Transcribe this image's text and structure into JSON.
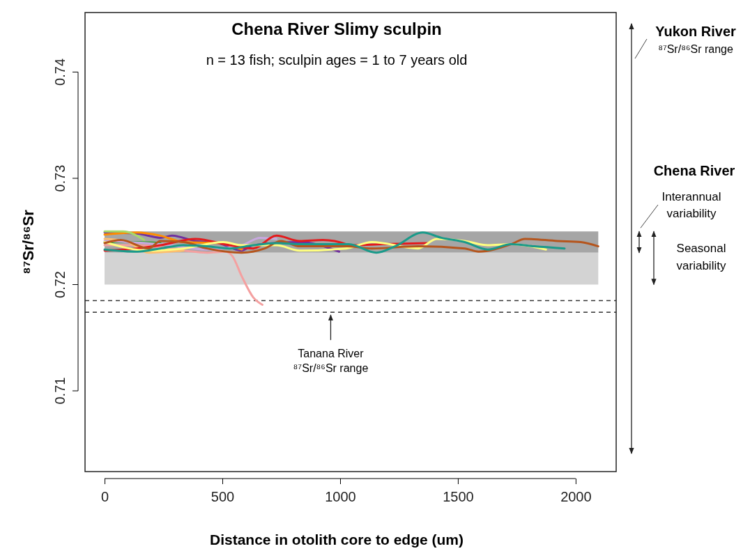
{
  "chart_data": {
    "type": "line",
    "title": "Chena River Slimy sculpin",
    "subtitle": "n = 13 fish; sculpin ages = 1 to 7 years old",
    "xlabel": "Distance in otolith core to edge (um)",
    "ylabel": "⁸⁷Sr/⁸⁶Sr",
    "xlim": [
      -83,
      2172
    ],
    "xticks": [
      0,
      500,
      1000,
      1500,
      2000
    ],
    "ylim": [
      0.7024,
      0.7456
    ],
    "yticks": [
      0.71,
      0.72,
      0.73,
      0.74
    ],
    "grid": false,
    "marker": "none",
    "line_style": "solid",
    "series": [
      {
        "color": "#f4a0a0",
        "x": [
          0,
          138,
          335,
          434,
          513,
          542,
          582,
          631,
          670
        ],
        "values": [
          0.7237,
          0.7237,
          0.7232,
          0.723,
          0.7231,
          0.7227,
          0.7208,
          0.7188,
          0.7181
        ]
      },
      {
        "color": "#7030a0",
        "x": [
          0,
          138,
          237,
          286,
          385,
          483,
          582,
          631,
          828,
          996
        ],
        "values": [
          0.7249,
          0.7248,
          0.7244,
          0.7246,
          0.7241,
          0.7239,
          0.7232,
          0.7237,
          0.724,
          0.7231
        ]
      },
      {
        "color": "#ff8c00",
        "x": [
          0,
          138,
          237,
          335,
          483,
          582
        ],
        "values": [
          0.7247,
          0.7249,
          0.7246,
          0.724,
          0.7239,
          0.7233
        ]
      },
      {
        "color": "#a6d96a",
        "x": [
          0,
          79,
          168
        ],
        "values": [
          0.725,
          0.725,
          0.7242
        ]
      },
      {
        "color": "#2ca02c",
        "x": [
          0,
          138,
          237
        ],
        "values": [
          0.724,
          0.724,
          0.7239
        ]
      },
      {
        "color": "#fdbf6f",
        "x": [
          0,
          89,
          187,
          335
        ],
        "values": [
          0.7243,
          0.7241,
          0.723,
          0.7232
        ]
      },
      {
        "color": "#c8a8e0",
        "x": [
          0,
          237,
          434,
          582,
          661,
          730
        ],
        "values": [
          0.7241,
          0.7238,
          0.7233,
          0.7237,
          0.7244,
          0.7243
        ]
      },
      {
        "color": "#e41a1c",
        "x": [
          0,
          138,
          237,
          385,
          532,
          631,
          730,
          828,
          927,
          1026,
          1036,
          1184,
          1371
        ],
        "values": [
          0.7232,
          0.7234,
          0.7237,
          0.7243,
          0.7237,
          0.7234,
          0.7246,
          0.7241,
          0.7242,
          0.7238,
          0.7237,
          0.7238,
          0.7239
        ]
      },
      {
        "color": "#ffff80",
        "x": [
          0,
          187,
          335,
          503,
          582,
          730,
          828,
          1026,
          1134,
          1331,
          1410,
          1529,
          1627,
          1726,
          1874
        ],
        "values": [
          0.724,
          0.7232,
          0.7234,
          0.724,
          0.7237,
          0.7237,
          0.7232,
          0.7234,
          0.724,
          0.7234,
          0.7243,
          0.7241,
          0.7237,
          0.7238,
          0.7233
        ]
      },
      {
        "color": "#b5551d",
        "x": [
          0,
          69,
          187,
          237,
          335,
          434,
          582,
          680,
          749,
          828,
          1026,
          1134,
          1331,
          1529,
          1588,
          1726,
          1785,
          1923,
          2022,
          2096
        ],
        "values": [
          0.7239,
          0.7242,
          0.7234,
          0.7241,
          0.724,
          0.7234,
          0.723,
          0.7234,
          0.7241,
          0.7236,
          0.7236,
          0.7234,
          0.7236,
          0.7234,
          0.7231,
          0.7238,
          0.7243,
          0.7241,
          0.724,
          0.7236
        ]
      },
      {
        "color": "#1a9a8a",
        "x": [
          0,
          138,
          237,
          335,
          434,
          532,
          631,
          730,
          828,
          927,
          1036,
          1154,
          1233,
          1351,
          1430,
          1529,
          1627,
          1726,
          1824,
          1953
        ],
        "values": [
          0.7233,
          0.7231,
          0.7234,
          0.7237,
          0.7236,
          0.7234,
          0.7237,
          0.7239,
          0.7238,
          0.7238,
          0.7238,
          0.723,
          0.7236,
          0.7249,
          0.7244,
          0.724,
          0.7233,
          0.7238,
          0.7236,
          0.7234
        ]
      }
    ],
    "bands": [
      {
        "axis": "y",
        "from": 0.723,
        "to": 0.725,
        "color": "#a6a6a6"
      },
      {
        "axis": "y",
        "from": 0.72,
        "to": 0.723,
        "color": "#d3d3d3"
      }
    ],
    "ref_lines": [
      {
        "axis": "y",
        "value": 0.7185,
        "line_style": "dashed",
        "color": "#333333"
      },
      {
        "axis": "y",
        "value": 0.7174,
        "line_style": "dashed",
        "color": "#333333"
      }
    ],
    "annotations": [
      "Tanana River",
      "⁸⁷Sr/⁸⁶Sr range",
      "Yukon River",
      "⁸⁷Sr/⁸⁶Sr range",
      "Chena River",
      "Interannual",
      "variability",
      "Seasonal",
      "variability"
    ]
  }
}
